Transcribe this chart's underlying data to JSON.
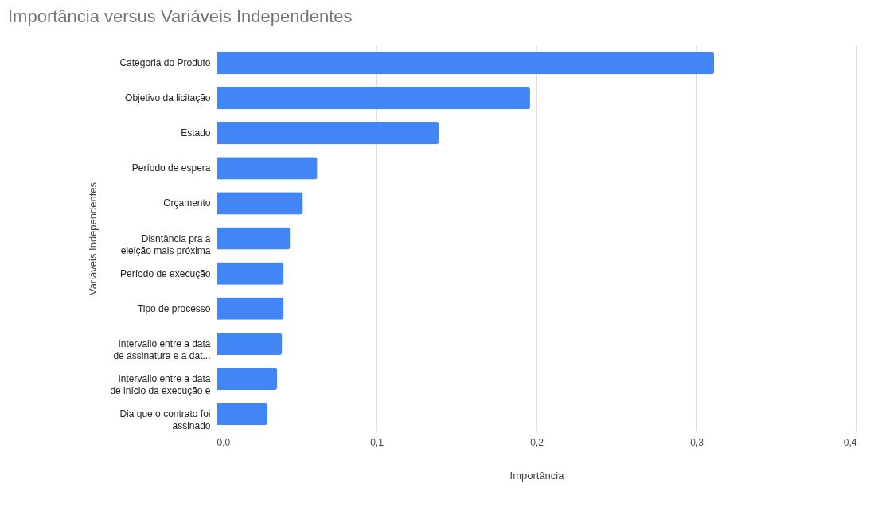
{
  "chart_data": {
    "type": "bar",
    "orientation": "horizontal",
    "title": "Importância  versus Variáveis Independentes",
    "xlabel": "Importância",
    "ylabel": "Variáveis Independentes",
    "categories": [
      "Categoria do Produto",
      "Objetivo da licitação",
      "Estado",
      "Período de espera",
      "Orçamento",
      "Disntância pra a\neleição mais próxima",
      "Período de execução",
      "Tipo de processo",
      "Intervallo entre a data\nde assinatura e a dat...",
      "Intervallo entre a data\nde início da execução e",
      "Dia que o contrato foi\nassinado"
    ],
    "values": [
      0.311,
      0.196,
      0.139,
      0.063,
      0.054,
      0.046,
      0.042,
      0.042,
      0.041,
      0.038,
      0.032
    ],
    "color": "#4285f4",
    "xlim": [
      0,
      0.4
    ],
    "xticks": [
      {
        "value": 0,
        "label": "0,0"
      },
      {
        "value": 0.1,
        "label": "0,1"
      },
      {
        "value": 0.2,
        "label": "0,2"
      },
      {
        "value": 0.3,
        "label": "0,3"
      },
      {
        "value": 0.4,
        "label": "0,4"
      }
    ],
    "grid": "x"
  }
}
